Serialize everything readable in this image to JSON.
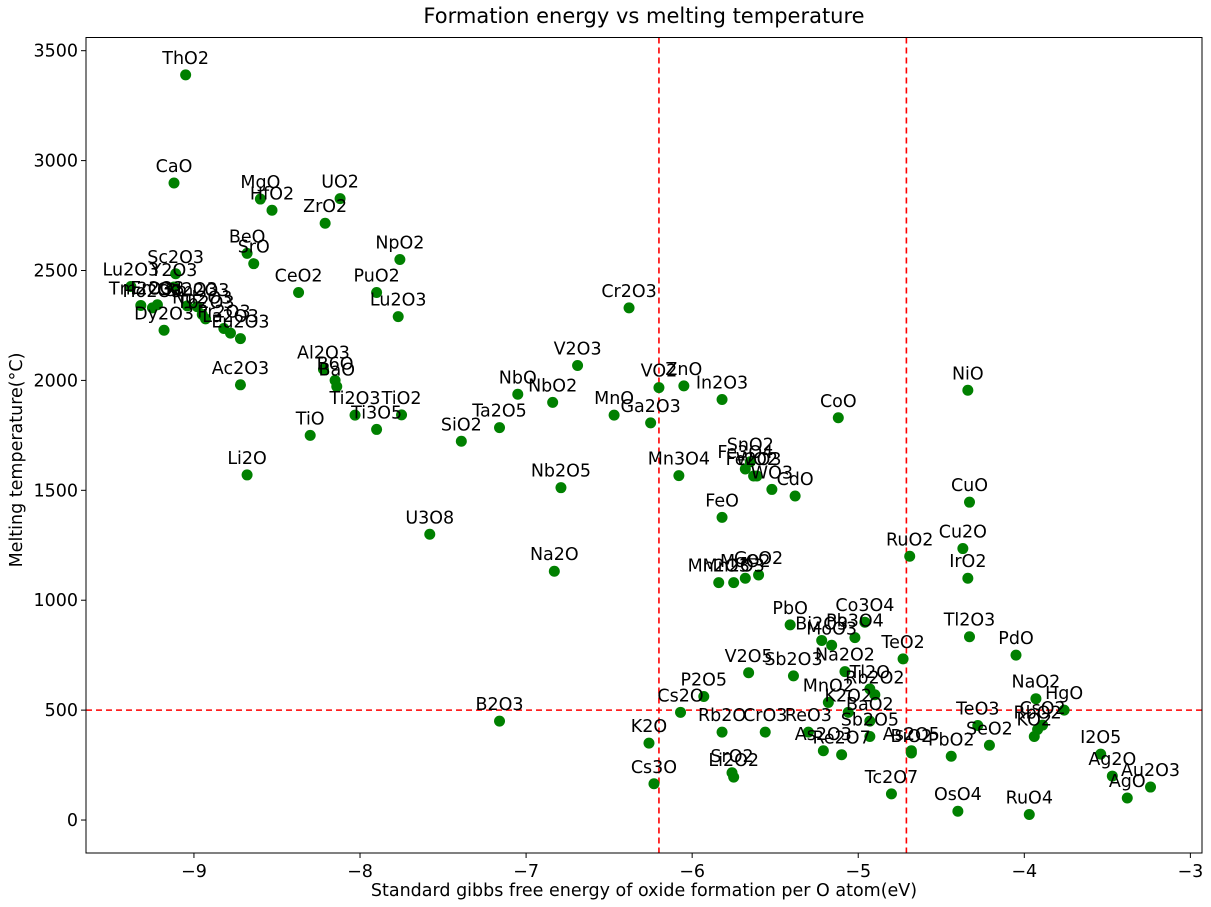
{
  "chart_data": {
    "type": "scatter",
    "title": "Formation energy vs melting temperature",
    "xlabel": "Standard gibbs free energy of oxide formation per O atom(eV)",
    "ylabel": "Melting temperature(°C)",
    "xlim": [
      -9.65,
      -2.93
    ],
    "ylim": [
      -150,
      3560
    ],
    "xticks": [
      -9,
      -8,
      -7,
      -6,
      -5,
      -4,
      -3
    ],
    "xtick_labels": [
      "−9",
      "−8",
      "−7",
      "−6",
      "−5",
      "−4",
      "−3"
    ],
    "yticks": [
      0,
      500,
      1000,
      1500,
      2000,
      2500,
      3000,
      3500
    ],
    "ytick_labels": [
      "0",
      "500",
      "1000",
      "1500",
      "2000",
      "2500",
      "3000",
      "3500"
    ],
    "grid": false,
    "marker_color": "#008000",
    "ref_lines": {
      "color": "#ff0000",
      "vertical_x": [
        -6.2,
        -4.71
      ],
      "horizontal_y": [
        500
      ]
    },
    "points": [
      {
        "label": "ThO2",
        "x": -9.05,
        "y": 3390
      },
      {
        "label": "CaO",
        "x": -9.12,
        "y": 2898
      },
      {
        "label": "MgO",
        "x": -8.6,
        "y": 2825
      },
      {
        "label": "HfO2",
        "x": -8.53,
        "y": 2774
      },
      {
        "label": "UO2",
        "x": -8.12,
        "y": 2827
      },
      {
        "label": "ZrO2",
        "x": -8.21,
        "y": 2715
      },
      {
        "label": "BeO",
        "x": -8.68,
        "y": 2578
      },
      {
        "label": "SrO",
        "x": -8.64,
        "y": 2531
      },
      {
        "label": "NpO2",
        "x": -7.76,
        "y": 2550
      },
      {
        "label": "Sc2O3",
        "x": -9.11,
        "y": 2485
      },
      {
        "label": "Y2O3",
        "x": -9.12,
        "y": 2425
      },
      {
        "label": "Lu2O3",
        "x": -9.38,
        "y": 2427
      },
      {
        "label": "CeO2",
        "x": -8.37,
        "y": 2400
      },
      {
        "label": "PuO2",
        "x": -7.9,
        "y": 2400
      },
      {
        "label": "Lu2O3",
        "x": -7.77,
        "y": 2290
      },
      {
        "label": "Tm2O3",
        "x": -9.32,
        "y": 2341
      },
      {
        "label": "Ho2O3",
        "x": -9.25,
        "y": 2330
      },
      {
        "label": "Er2O3",
        "x": -9.22,
        "y": 2344
      },
      {
        "label": "Gd2O3",
        "x": -9.04,
        "y": 2339
      },
      {
        "label": "Sm2O3",
        "x": -8.98,
        "y": 2335
      },
      {
        "label": "Nd2O3",
        "x": -8.95,
        "y": 2300
      },
      {
        "label": "Tb2O3",
        "x": -8.93,
        "y": 2280
      },
      {
        "label": "Pr2O3",
        "x": -8.82,
        "y": 2236
      },
      {
        "label": "La2O3",
        "x": -8.78,
        "y": 2215
      },
      {
        "label": "Eu2O3",
        "x": -8.72,
        "y": 2190
      },
      {
        "label": "Dy2O3",
        "x": -9.18,
        "y": 2228
      },
      {
        "label": "Cr2O3",
        "x": -6.38,
        "y": 2330
      },
      {
        "label": "Al2O3",
        "x": -8.22,
        "y": 2050
      },
      {
        "label": "B6O",
        "x": -8.15,
        "y": 2000
      },
      {
        "label": "BaO",
        "x": -8.14,
        "y": 1972
      },
      {
        "label": "Ac2O3",
        "x": -8.72,
        "y": 1980
      },
      {
        "label": "V2O3",
        "x": -6.69,
        "y": 2068
      },
      {
        "label": "VO2",
        "x": -6.2,
        "y": 1967
      },
      {
        "label": "ZnO",
        "x": -6.05,
        "y": 1975
      },
      {
        "label": "In2O3",
        "x": -5.82,
        "y": 1913
      },
      {
        "label": "NiO",
        "x": -4.34,
        "y": 1955
      },
      {
        "label": "NbO",
        "x": -7.05,
        "y": 1937
      },
      {
        "label": "NbO2",
        "x": -6.84,
        "y": 1900
      },
      {
        "label": "Ti2O3",
        "x": -8.03,
        "y": 1842
      },
      {
        "label": "TiO2",
        "x": -7.75,
        "y": 1843
      },
      {
        "label": "Ti3O5",
        "x": -7.9,
        "y": 1777
      },
      {
        "label": "MnO",
        "x": -6.47,
        "y": 1842
      },
      {
        "label": "Ga2O3",
        "x": -6.25,
        "y": 1807
      },
      {
        "label": "CoO",
        "x": -5.12,
        "y": 1830
      },
      {
        "label": "Ta2O5",
        "x": -7.16,
        "y": 1785
      },
      {
        "label": "SiO2",
        "x": -7.39,
        "y": 1723
      },
      {
        "label": "TiO",
        "x": -8.3,
        "y": 1750
      },
      {
        "label": "Li2O",
        "x": -8.68,
        "y": 1570
      },
      {
        "label": "SnO2",
        "x": -5.65,
        "y": 1630
      },
      {
        "label": "Fe3O4",
        "x": -5.68,
        "y": 1597
      },
      {
        "label": "Fe2O3",
        "x": -5.63,
        "y": 1565
      },
      {
        "label": "WO2",
        "x": -5.61,
        "y": 1565
      },
      {
        "label": "WO3",
        "x": -5.52,
        "y": 1504
      },
      {
        "label": "Mn3O4",
        "x": -6.08,
        "y": 1567
      },
      {
        "label": "CdO",
        "x": -5.38,
        "y": 1474
      },
      {
        "label": "Nb2O5",
        "x": -6.79,
        "y": 1512
      },
      {
        "label": "CuO",
        "x": -4.33,
        "y": 1446
      },
      {
        "label": "FeO",
        "x": -5.82,
        "y": 1377
      },
      {
        "label": "U3O8",
        "x": -7.58,
        "y": 1300
      },
      {
        "label": "RuO2",
        "x": -4.69,
        "y": 1200
      },
      {
        "label": "Cu2O",
        "x": -4.37,
        "y": 1235
      },
      {
        "label": "Na2O",
        "x": -6.83,
        "y": 1132
      },
      {
        "label": "IrO2",
        "x": -4.34,
        "y": 1100
      },
      {
        "label": "Mn2O3",
        "x": -5.84,
        "y": 1080
      },
      {
        "label": "MoO2",
        "x": -5.68,
        "y": 1100
      },
      {
        "label": "GeO2",
        "x": -5.6,
        "y": 1115
      },
      {
        "label": "Mn2O3",
        "x": -5.75,
        "y": 1080
      },
      {
        "label": "Co3O4",
        "x": -4.96,
        "y": 900
      },
      {
        "label": "PbO",
        "x": -5.41,
        "y": 888
      },
      {
        "label": "Bi2O3",
        "x": -5.22,
        "y": 817
      },
      {
        "label": "Pb3O4",
        "x": -5.02,
        "y": 830
      },
      {
        "label": "MoO3",
        "x": -5.16,
        "y": 795
      },
      {
        "label": "Tl2O3",
        "x": -4.33,
        "y": 834
      },
      {
        "label": "PdO",
        "x": -4.05,
        "y": 750
      },
      {
        "label": "TeO2",
        "x": -4.73,
        "y": 733
      },
      {
        "label": "Na2O2",
        "x": -5.08,
        "y": 675
      },
      {
        "label": "Sb2O3",
        "x": -5.39,
        "y": 656
      },
      {
        "label": "V2O5",
        "x": -5.66,
        "y": 670
      },
      {
        "label": "Tl2O",
        "x": -4.93,
        "y": 596
      },
      {
        "label": "Rb2O2",
        "x": -4.9,
        "y": 570
      },
      {
        "label": "MnO2",
        "x": -5.18,
        "y": 535
      },
      {
        "label": "K2O2",
        "x": -5.06,
        "y": 490
      },
      {
        "label": "P2O5",
        "x": -5.93,
        "y": 562
      },
      {
        "label": "NaO2",
        "x": -3.93,
        "y": 552
      },
      {
        "label": "HgO",
        "x": -3.76,
        "y": 500
      },
      {
        "label": "Cs2O",
        "x": -6.07,
        "y": 490
      },
      {
        "label": "BaO2",
        "x": -4.93,
        "y": 450
      },
      {
        "label": "CsO2",
        "x": -3.89,
        "y": 432
      },
      {
        "label": "RbO2",
        "x": -3.92,
        "y": 412
      },
      {
        "label": "KO2",
        "x": -3.94,
        "y": 380
      },
      {
        "label": "B2O3",
        "x": -7.16,
        "y": 450
      },
      {
        "label": "TeO3",
        "x": -4.28,
        "y": 430
      },
      {
        "label": "Rb2O",
        "x": -5.82,
        "y": 400
      },
      {
        "label": "CrO3",
        "x": -5.56,
        "y": 400
      },
      {
        "label": "ReO3",
        "x": -5.3,
        "y": 400
      },
      {
        "label": "Sb2O5",
        "x": -4.93,
        "y": 380
      },
      {
        "label": "As2O3",
        "x": -5.21,
        "y": 315
      },
      {
        "label": "Re2O7",
        "x": -5.1,
        "y": 297
      },
      {
        "label": "As2O5",
        "x": -4.68,
        "y": 315
      },
      {
        "label": "BiO2",
        "x": -4.68,
        "y": 305
      },
      {
        "label": "SeO2",
        "x": -4.21,
        "y": 340
      },
      {
        "label": "PbO2",
        "x": -4.44,
        "y": 290
      },
      {
        "label": "K2O",
        "x": -6.26,
        "y": 350
      },
      {
        "label": "SrO2",
        "x": -5.76,
        "y": 215
      },
      {
        "label": "Li2O2",
        "x": -5.75,
        "y": 195
      },
      {
        "label": "Cs3O",
        "x": -6.23,
        "y": 165
      },
      {
        "label": "I2O5",
        "x": -3.54,
        "y": 300
      },
      {
        "label": "Ag2O",
        "x": -3.47,
        "y": 200
      },
      {
        "label": "Au2O3",
        "x": -3.24,
        "y": 150
      },
      {
        "label": "AgO",
        "x": -3.38,
        "y": 100
      },
      {
        "label": "Tc2O7",
        "x": -4.8,
        "y": 119
      },
      {
        "label": "OsO4",
        "x": -4.4,
        "y": 40
      },
      {
        "label": "RuO4",
        "x": -3.97,
        "y": 25
      }
    ]
  }
}
